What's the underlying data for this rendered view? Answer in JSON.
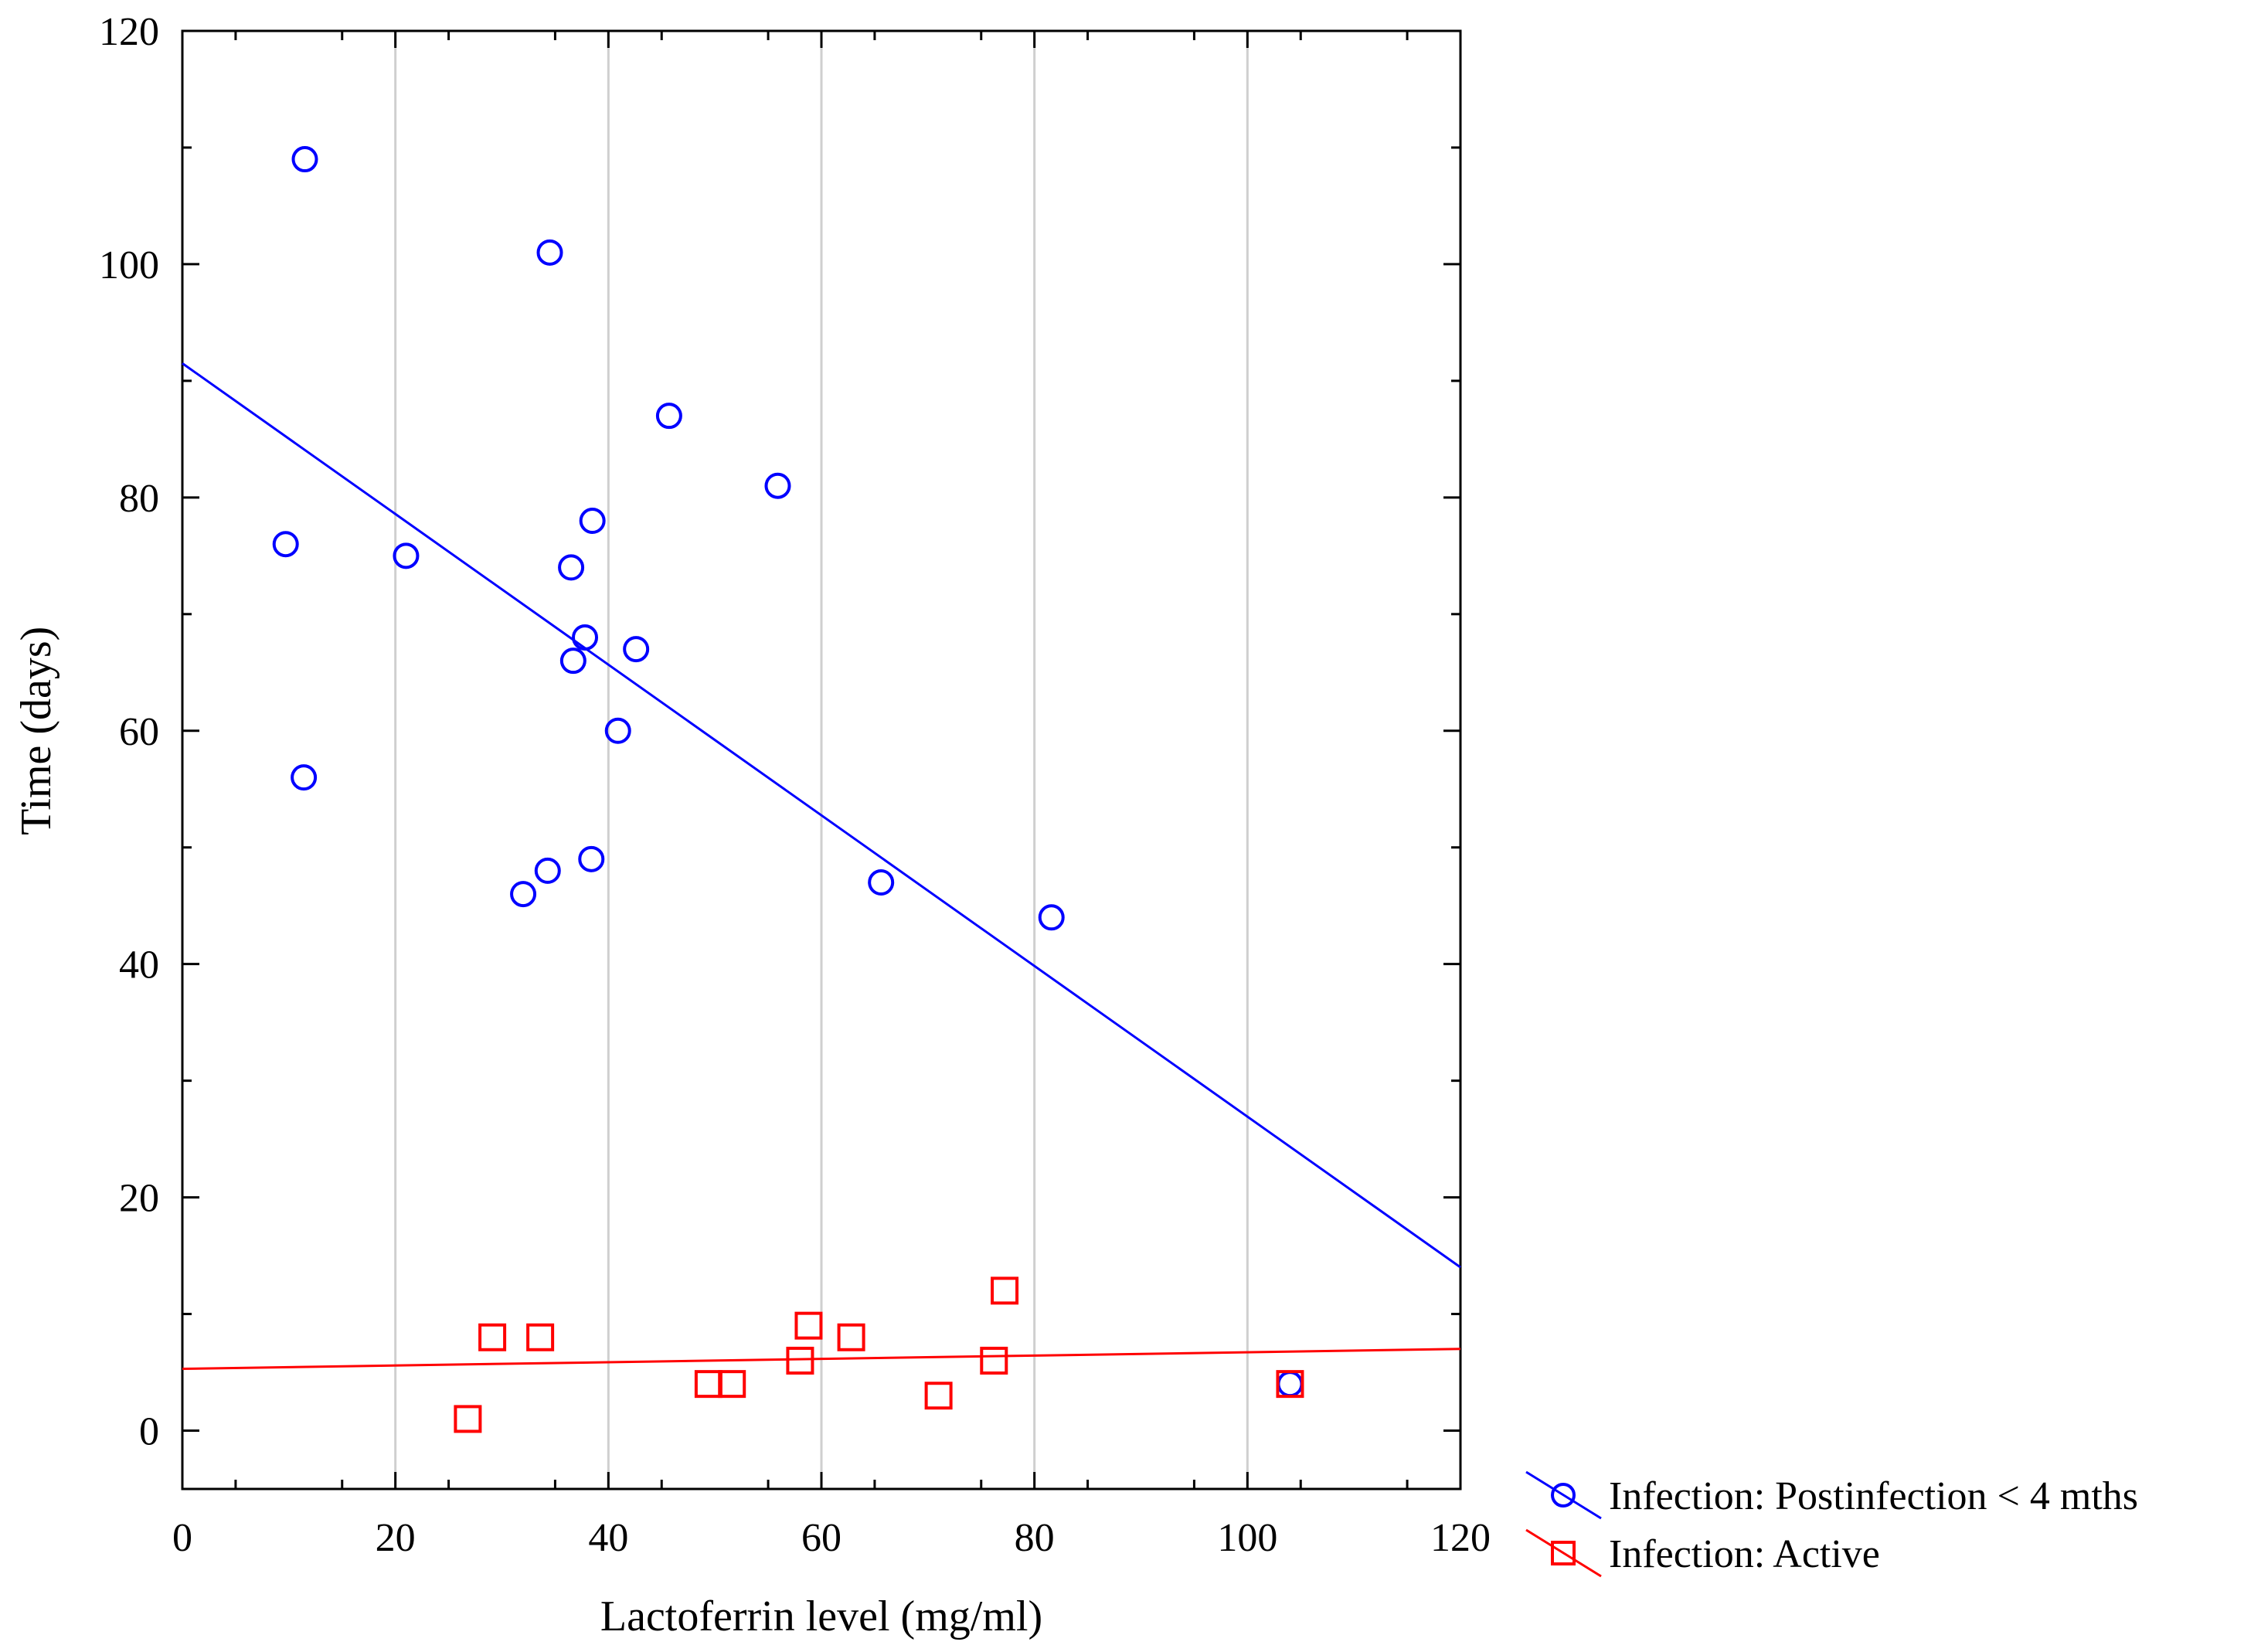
{
  "chart_data": {
    "type": "scatter",
    "title": "",
    "xlabel": "Lactoferrin level (mg/ml)",
    "ylabel": "Time (days)",
    "xlim": [
      0,
      120
    ],
    "ylim": [
      -5,
      120
    ],
    "xticks": [
      0,
      20,
      40,
      60,
      80,
      100,
      120
    ],
    "yticks": [
      0,
      20,
      40,
      60,
      80,
      100,
      120
    ],
    "xtick_labels": [
      "0",
      "20",
      "40",
      "60",
      "80",
      "100",
      "120"
    ],
    "ytick_labels": [
      "0",
      "20",
      "40",
      "60",
      "80",
      "100",
      "120"
    ],
    "grid": "vertical",
    "legend_position": "bottom-right outside",
    "series": [
      {
        "name": "Infection: Postinfection < 4 mths",
        "marker": "circle",
        "color": "#0000ff",
        "points": [
          [
            11.5,
            109
          ],
          [
            34.5,
            101
          ],
          [
            45.7,
            87
          ],
          [
            55.9,
            81
          ],
          [
            38.5,
            78
          ],
          [
            9.7,
            76
          ],
          [
            21.0,
            75
          ],
          [
            36.5,
            74
          ],
          [
            37.8,
            68
          ],
          [
            42.6,
            67
          ],
          [
            36.7,
            66
          ],
          [
            40.9,
            60
          ],
          [
            11.4,
            56
          ],
          [
            38.4,
            49
          ],
          [
            34.3,
            48
          ],
          [
            65.6,
            47
          ],
          [
            32.0,
            46
          ],
          [
            81.6,
            44
          ],
          [
            104.0,
            4
          ]
        ],
        "fit": {
          "intercept": 91.5,
          "slope": -0.6458
        }
      },
      {
        "name": "Infection: Active",
        "marker": "square",
        "color": "#ff0000",
        "points": [
          [
            77.2,
            12
          ],
          [
            58.8,
            9
          ],
          [
            29.1,
            8
          ],
          [
            33.6,
            8
          ],
          [
            62.8,
            8
          ],
          [
            58.0,
            6
          ],
          [
            76.2,
            6
          ],
          [
            49.4,
            4
          ],
          [
            51.6,
            4
          ],
          [
            104.0,
            4
          ],
          [
            71.0,
            3
          ],
          [
            26.8,
            1
          ]
        ],
        "fit": {
          "intercept": 5.3,
          "slope": 0.0142
        }
      }
    ]
  }
}
